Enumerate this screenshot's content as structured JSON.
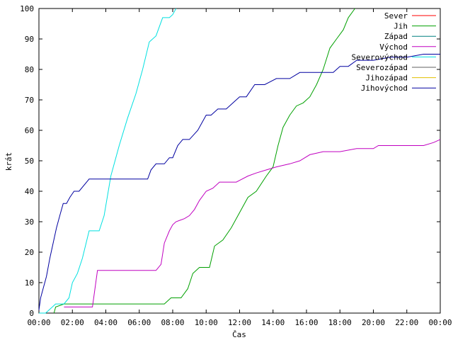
{
  "chart_data": {
    "type": "line",
    "title": "",
    "xlabel": "Čas",
    "ylabel": "krát",
    "xlim": [
      0,
      24
    ],
    "ylim": [
      0,
      100
    ],
    "x_ticks": [
      {
        "value": 0,
        "label": "00:00"
      },
      {
        "value": 2,
        "label": "02:00"
      },
      {
        "value": 4,
        "label": "04:00"
      },
      {
        "value": 6,
        "label": "06:00"
      },
      {
        "value": 8,
        "label": "08:00"
      },
      {
        "value": 10,
        "label": "10:00"
      },
      {
        "value": 12,
        "label": "12:00"
      },
      {
        "value": 14,
        "label": "14:00"
      },
      {
        "value": 16,
        "label": "16:00"
      },
      {
        "value": 18,
        "label": "18:00"
      },
      {
        "value": 20,
        "label": "20:00"
      },
      {
        "value": 22,
        "label": "22:00"
      },
      {
        "value": 24,
        "label": "00:00"
      }
    ],
    "y_ticks": [
      0,
      10,
      20,
      30,
      40,
      50,
      60,
      70,
      80,
      90,
      100
    ],
    "grid": false,
    "legend_position": "top-right",
    "series": [
      {
        "name": "Sever",
        "color": "#ff0000",
        "x": [],
        "y": []
      },
      {
        "name": "Jih",
        "color": "#00a000",
        "x": [
          0.9,
          1.0,
          1.5,
          3.0,
          5.0,
          7.5,
          7.9,
          8.5,
          8.9,
          9.2,
          9.6,
          10.2,
          10.5,
          11.0,
          11.5,
          12.0,
          12.5,
          13.0,
          13.6,
          14.0,
          14.3,
          14.6,
          15.0,
          15.4,
          15.8,
          16.2,
          16.6,
          17.0,
          17.4,
          17.8,
          18.2,
          18.5,
          18.9
        ],
        "y": [
          0,
          2,
          3,
          3,
          3,
          3,
          5,
          5,
          8,
          13,
          15,
          15,
          22,
          24,
          28,
          33,
          38,
          40,
          45,
          48,
          55,
          61,
          65,
          68,
          69,
          71,
          75,
          80,
          87,
          90,
          93,
          97,
          100
        ]
      },
      {
        "name": "Západ",
        "color": "#008080",
        "x": [],
        "y": []
      },
      {
        "name": "Východ",
        "color": "#c000c0",
        "x": [
          1.5,
          1.8,
          3.2,
          3.5,
          4.0,
          5.0,
          6.0,
          7.0,
          7.3,
          7.5,
          7.8,
          8.0,
          8.2,
          8.7,
          9.0,
          9.3,
          9.6,
          10.0,
          10.4,
          10.8,
          11.2,
          11.8,
          12.5,
          13.0,
          13.6,
          14.2,
          15.0,
          15.6,
          16.2,
          17.0,
          18.0,
          19.0,
          20.0,
          20.3,
          21.0,
          22.0,
          23.0,
          23.6,
          24.0
        ],
        "y": [
          2,
          2,
          2,
          14,
          14,
          14,
          14,
          14,
          16,
          23,
          27,
          29,
          30,
          31,
          32,
          34,
          37,
          40,
          41,
          43,
          43,
          43,
          45,
          46,
          47,
          48,
          49,
          50,
          52,
          53,
          53,
          54,
          54,
          55,
          55,
          55,
          55,
          56,
          57
        ]
      },
      {
        "name": "Severovýchod",
        "color": "#00e0e0",
        "x": [
          0.0,
          0.4,
          1.0,
          1.5,
          1.8,
          2.0,
          2.3,
          2.6,
          3.0,
          3.6,
          3.9,
          4.3,
          4.8,
          5.3,
          5.8,
          6.2,
          6.6,
          7.0,
          7.4,
          7.8,
          8.0,
          8.2
        ],
        "y": [
          0,
          0,
          3,
          3,
          5,
          10,
          13,
          18,
          27,
          27,
          32,
          45,
          55,
          64,
          72,
          80,
          89,
          91,
          97,
          97,
          98,
          100
        ]
      },
      {
        "name": "Severozápad",
        "color": "#606060",
        "x": [],
        "y": []
      },
      {
        "name": "Jihozápad",
        "color": "#e0c000",
        "x": [],
        "y": []
      },
      {
        "name": "Jihovýchod",
        "color": "#0000a0",
        "x": [
          0.0,
          0.1,
          0.25,
          0.45,
          0.65,
          0.85,
          1.05,
          1.25,
          1.45,
          1.65,
          1.85,
          2.1,
          2.4,
          3.0,
          4.0,
          5.0,
          6.0,
          6.5,
          6.7,
          7.0,
          7.5,
          7.8,
          8.0,
          8.3,
          8.6,
          9.0,
          9.5,
          9.8,
          10.0,
          10.3,
          10.7,
          11.2,
          11.6,
          12.0,
          12.4,
          12.9,
          13.5,
          14.2,
          15.0,
          15.6,
          16.0,
          16.5,
          17.0,
          17.6,
          18.0,
          18.5,
          19.0,
          20.0,
          21.0,
          22.0,
          23.0,
          24.0
        ],
        "y": [
          1,
          5,
          8,
          12,
          18,
          23,
          28,
          32,
          36,
          36,
          38,
          40,
          40,
          44,
          44,
          44,
          44,
          44,
          47,
          49,
          49,
          51,
          51,
          55,
          57,
          57,
          60,
          63,
          65,
          65,
          67,
          67,
          69,
          71,
          71,
          75,
          75,
          77,
          77,
          79,
          79,
          79,
          79,
          79,
          81,
          81,
          83,
          83,
          84,
          84,
          85,
          85
        ]
      }
    ]
  }
}
